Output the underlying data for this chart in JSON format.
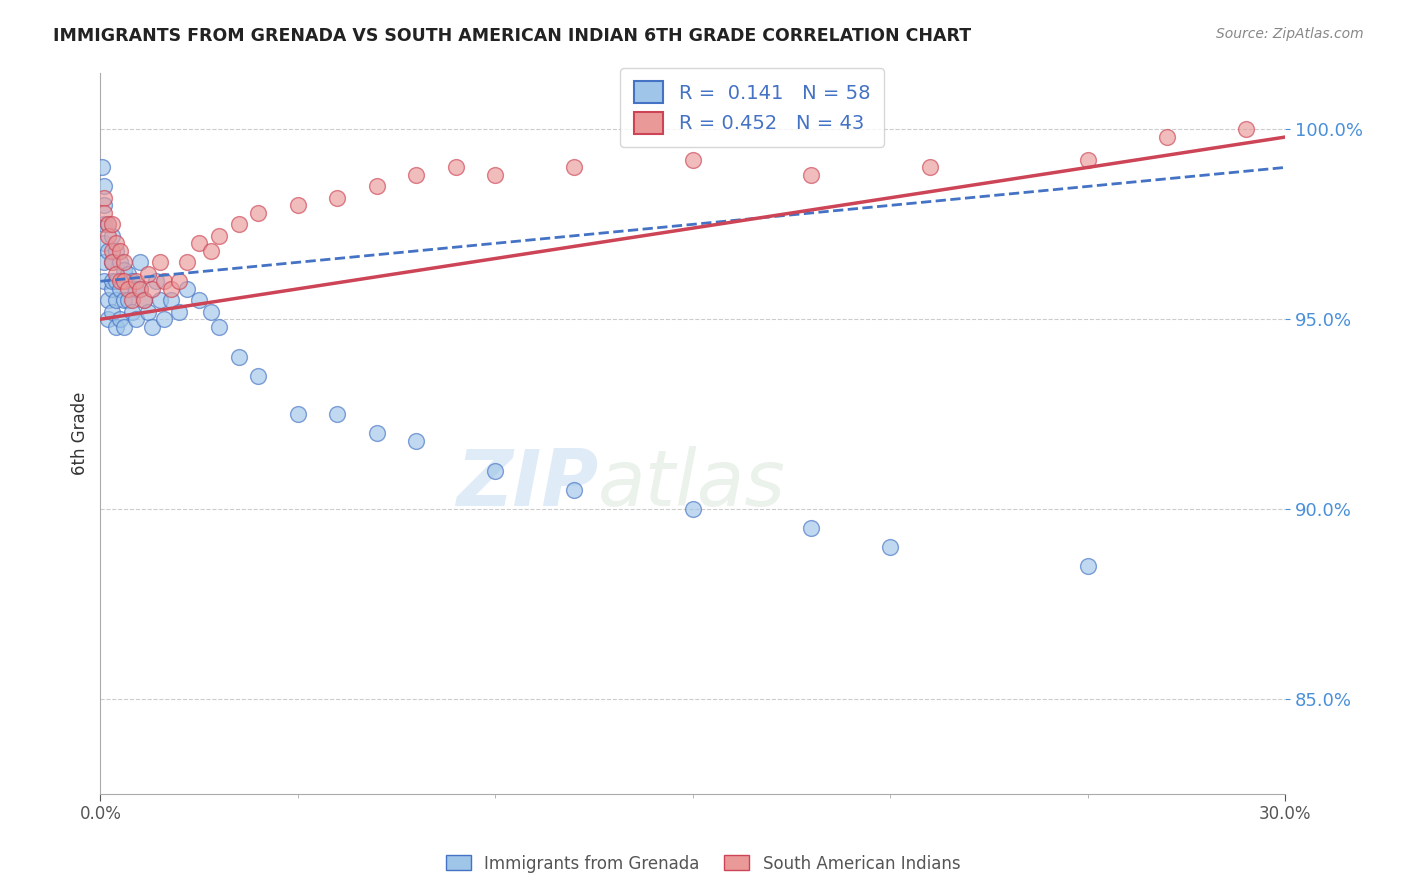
{
  "title": "IMMIGRANTS FROM GRENADA VS SOUTH AMERICAN INDIAN 6TH GRADE CORRELATION CHART",
  "source": "Source: ZipAtlas.com",
  "ylabel": "6th Grade",
  "xlim": [
    0.0,
    0.3
  ],
  "ylim": [
    0.825,
    1.015
  ],
  "legend1_R": "0.141",
  "legend1_N": "58",
  "legend2_R": "0.452",
  "legend2_N": "43",
  "color_blue": "#9fc5e8",
  "color_pink": "#ea9999",
  "trend_blue": "#4472c4",
  "trend_pink": "#cc4455",
  "blue_x": [
    0.0005,
    0.0008,
    0.001,
    0.001,
    0.001,
    0.001,
    0.001,
    0.002,
    0.002,
    0.002,
    0.002,
    0.003,
    0.003,
    0.003,
    0.003,
    0.003,
    0.004,
    0.004,
    0.004,
    0.004,
    0.005,
    0.005,
    0.005,
    0.006,
    0.006,
    0.006,
    0.007,
    0.007,
    0.008,
    0.008,
    0.009,
    0.009,
    0.01,
    0.01,
    0.011,
    0.012,
    0.013,
    0.014,
    0.015,
    0.016,
    0.018,
    0.02,
    0.022,
    0.025,
    0.028,
    0.03,
    0.035,
    0.04,
    0.05,
    0.06,
    0.07,
    0.08,
    0.1,
    0.12,
    0.15,
    0.18,
    0.2,
    0.25
  ],
  "blue_y": [
    0.99,
    0.985,
    0.98,
    0.975,
    0.965,
    0.97,
    0.96,
    0.975,
    0.968,
    0.955,
    0.95,
    0.972,
    0.965,
    0.958,
    0.96,
    0.952,
    0.968,
    0.96,
    0.955,
    0.948,
    0.965,
    0.958,
    0.95,
    0.963,
    0.955,
    0.948,
    0.962,
    0.955,
    0.96,
    0.952,
    0.958,
    0.95,
    0.965,
    0.958,
    0.955,
    0.952,
    0.948,
    0.96,
    0.955,
    0.95,
    0.955,
    0.952,
    0.958,
    0.955,
    0.952,
    0.948,
    0.94,
    0.935,
    0.925,
    0.925,
    0.92,
    0.918,
    0.91,
    0.905,
    0.9,
    0.895,
    0.89,
    0.885
  ],
  "pink_x": [
    0.001,
    0.001,
    0.002,
    0.002,
    0.003,
    0.003,
    0.003,
    0.004,
    0.004,
    0.005,
    0.005,
    0.006,
    0.006,
    0.007,
    0.008,
    0.009,
    0.01,
    0.011,
    0.012,
    0.013,
    0.015,
    0.016,
    0.018,
    0.02,
    0.022,
    0.025,
    0.028,
    0.03,
    0.035,
    0.04,
    0.05,
    0.06,
    0.07,
    0.08,
    0.09,
    0.1,
    0.12,
    0.15,
    0.18,
    0.21,
    0.25,
    0.27,
    0.29
  ],
  "pink_y": [
    0.982,
    0.978,
    0.975,
    0.972,
    0.975,
    0.968,
    0.965,
    0.97,
    0.962,
    0.968,
    0.96,
    0.965,
    0.96,
    0.958,
    0.955,
    0.96,
    0.958,
    0.955,
    0.962,
    0.958,
    0.965,
    0.96,
    0.958,
    0.96,
    0.965,
    0.97,
    0.968,
    0.972,
    0.975,
    0.978,
    0.98,
    0.982,
    0.985,
    0.988,
    0.99,
    0.988,
    0.99,
    0.992,
    0.988,
    0.99,
    0.992,
    0.998,
    1.0
  ],
  "blue_trend_x0": 0.0,
  "blue_trend_y0": 0.96,
  "blue_trend_x1": 0.3,
  "blue_trend_y1": 0.99,
  "pink_trend_x0": 0.0,
  "pink_trend_y0": 0.95,
  "pink_trend_x1": 0.3,
  "pink_trend_y1": 0.998
}
